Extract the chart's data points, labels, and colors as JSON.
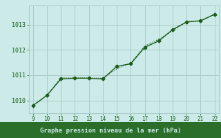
{
  "title": "Graphe pression niveau de la mer (hPa)",
  "background_color": "#cceae7",
  "plot_bg_color": "#cceae7",
  "grid_color": "#aacccc",
  "line_color": "#1a5c1a",
  "title_bg_color": "#2a6e2a",
  "title_text_color": "#cceae7",
  "x_min": 9,
  "x_max": 22,
  "y_min": 1009.5,
  "y_max": 1013.75,
  "yticks": [
    1010,
    1011,
    1012,
    1013
  ],
  "xticks": [
    9,
    10,
    11,
    12,
    13,
    14,
    15,
    16,
    17,
    18,
    19,
    20,
    21,
    22
  ],
  "line1_x": [
    9,
    10,
    11,
    12,
    13,
    14,
    15,
    16,
    17,
    18,
    19,
    20,
    21,
    22
  ],
  "line1_y": [
    1009.8,
    1010.2,
    1010.85,
    1010.88,
    1010.88,
    1010.85,
    1011.35,
    1011.45,
    1012.1,
    1012.35,
    1012.8,
    1013.1,
    1013.15,
    1013.4
  ],
  "line2_x": [
    9,
    10,
    11,
    14,
    15,
    16,
    17,
    18,
    19,
    20,
    21,
    22
  ],
  "line2_y": [
    1009.8,
    1010.2,
    1010.9,
    1010.88,
    1011.25,
    1011.48,
    1012.15,
    1012.42,
    1012.75,
    1013.12,
    1013.13,
    1013.42
  ]
}
